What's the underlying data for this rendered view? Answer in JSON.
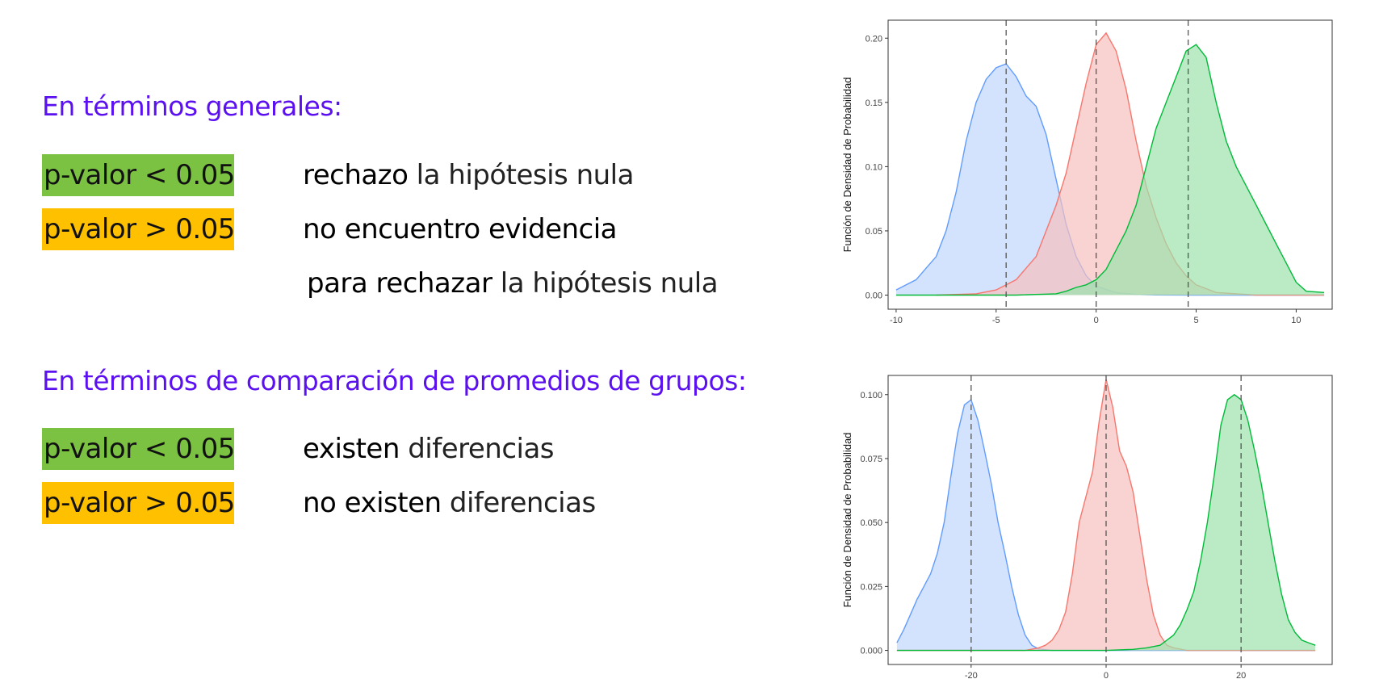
{
  "section_general": {
    "heading": "En términos generales:",
    "rows": [
      {
        "badge": "p-valor < 0.05",
        "badge_color": "#7bc142",
        "strong": "rechazo",
        "rest": " la hipótesis nula"
      },
      {
        "badge": "p-valor > 0.05",
        "badge_color": "#ffc000",
        "strong": "no encuentro evidencia",
        "rest": ""
      },
      {
        "strong": "para rechazar",
        "rest": " la hipótesis nula"
      }
    ]
  },
  "section_groups": {
    "heading": "En términos de comparación de promedios de grupos:",
    "rows": [
      {
        "badge": "p-valor < 0.05",
        "badge_color": "#7bc142",
        "strong": "existen",
        "rest": " diferencias"
      },
      {
        "badge": "p-valor > 0.05",
        "badge_color": "#ffc000",
        "strong": "no existen",
        "rest": " diferencias"
      }
    ]
  },
  "heading_color": "#5b10f0",
  "chart_data": [
    {
      "type": "area",
      "title": "",
      "xlabel": "",
      "ylabel": "Función de Densidad de Probabilidad",
      "xlim": [
        -10.4,
        11.8
      ],
      "ylim": [
        -0.011,
        0.214
      ],
      "xticks": [
        -10,
        -5,
        0,
        5,
        10
      ],
      "xtick_labels": [
        "-10",
        "-5",
        "0",
        "5",
        "10"
      ],
      "yticks": [
        0,
        0.05,
        0.1,
        0.15,
        0.2
      ],
      "ytick_labels": [
        "0.00",
        "0.05",
        "0.10",
        "0.15",
        "0.20"
      ],
      "grid": false,
      "legend": "none",
      "vlines": [
        -4.5,
        0,
        4.6
      ],
      "series": [
        {
          "color": "#619cff",
          "fill": "#c1d6fc",
          "x": [
            -10,
            -9,
            -8,
            -7.5,
            -7,
            -6.5,
            -6,
            -5.5,
            -5,
            -4.5,
            -4,
            -3.5,
            -3,
            -2.5,
            -2,
            -1.5,
            -1,
            -0.5,
            0,
            1,
            2,
            3,
            5,
            11.4
          ],
          "y": [
            0.004,
            0.012,
            0.03,
            0.05,
            0.08,
            0.12,
            0.15,
            0.168,
            0.177,
            0.18,
            0.17,
            0.155,
            0.147,
            0.125,
            0.09,
            0.055,
            0.03,
            0.015,
            0.007,
            0.002,
            0.0005,
            0.0001,
            0,
            0
          ]
        },
        {
          "color": "#f8766d",
          "fill": "#f6c1bd",
          "x": [
            -8,
            -6,
            -5,
            -4,
            -3,
            -2.5,
            -2,
            -1.5,
            -1,
            -0.5,
            0,
            0.5,
            1,
            1.5,
            2,
            2.5,
            3,
            3.5,
            4,
            4.5,
            5,
            6,
            8,
            11.4
          ],
          "y": [
            0,
            0.001,
            0.004,
            0.012,
            0.03,
            0.05,
            0.07,
            0.095,
            0.13,
            0.165,
            0.195,
            0.204,
            0.19,
            0.16,
            0.12,
            0.085,
            0.06,
            0.04,
            0.025,
            0.015,
            0.008,
            0.002,
            0,
            0
          ]
        },
        {
          "color": "#00ba38",
          "fill": "#9de3ac",
          "x": [
            -10,
            -4,
            -2,
            -1.5,
            -1,
            -0.5,
            0,
            0.5,
            1,
            1.5,
            2,
            2.5,
            3,
            3.5,
            4,
            4.5,
            5,
            5.5,
            6,
            6.5,
            7,
            7.5,
            8,
            8.5,
            9,
            9.5,
            10,
            10.5,
            11.4
          ],
          "y": [
            0,
            0,
            0.001,
            0.003,
            0.006,
            0.008,
            0.012,
            0.02,
            0.035,
            0.05,
            0.07,
            0.1,
            0.13,
            0.15,
            0.17,
            0.19,
            0.195,
            0.185,
            0.15,
            0.12,
            0.1,
            0.085,
            0.07,
            0.055,
            0.04,
            0.025,
            0.01,
            0.003,
            0.002
          ]
        }
      ]
    },
    {
      "type": "area",
      "title": "",
      "xlabel": "",
      "ylabel": "Función de Densidad de Probabilidad",
      "xlim": [
        -32.3,
        33.5
      ],
      "ylim": [
        -0.0055,
        0.1075
      ],
      "xticks": [
        -20,
        0,
        20
      ],
      "xtick_labels": [
        "-20",
        "0",
        "20"
      ],
      "yticks": [
        0,
        0.025,
        0.05,
        0.075,
        0.1
      ],
      "ytick_labels": [
        "0.000",
        "0.025",
        "0.050",
        "0.075",
        "0.100"
      ],
      "grid": false,
      "legend": "none",
      "vlines": [
        -20,
        0,
        20
      ],
      "series": [
        {
          "color": "#619cff",
          "fill": "#c1d6fc",
          "x": [
            -31,
            -30,
            -29,
            -28,
            -27,
            -26,
            -25,
            -24,
            -23,
            -22,
            -21,
            -20,
            -19,
            -18,
            -17,
            -16,
            -15,
            -14,
            -13,
            -12,
            -11,
            -10,
            -8,
            31
          ],
          "y": [
            0.003,
            0.008,
            0.014,
            0.02,
            0.025,
            0.03,
            0.038,
            0.05,
            0.068,
            0.085,
            0.096,
            0.098,
            0.09,
            0.078,
            0.065,
            0.05,
            0.038,
            0.025,
            0.014,
            0.006,
            0.002,
            0.0006,
            0,
            0
          ]
        },
        {
          "color": "#f8766d",
          "fill": "#f6c1bd",
          "x": [
            -31,
            -12,
            -10,
            -9,
            -8,
            -7,
            -6,
            -5,
            -4,
            -3,
            -2,
            -1,
            0,
            1,
            2,
            3,
            4,
            5,
            6,
            7,
            8,
            9,
            10,
            12,
            31
          ],
          "y": [
            0,
            0,
            0.001,
            0.002,
            0.004,
            0.008,
            0.015,
            0.03,
            0.05,
            0.06,
            0.07,
            0.09,
            0.106,
            0.095,
            0.078,
            0.072,
            0.062,
            0.045,
            0.028,
            0.014,
            0.006,
            0.002,
            0.001,
            0,
            0
          ]
        },
        {
          "color": "#00ba38",
          "fill": "#9de3ac",
          "x": [
            -31,
            0,
            4,
            6,
            8,
            9,
            10,
            11,
            12,
            13,
            14,
            15,
            16,
            17,
            18,
            19,
            20,
            21,
            22,
            23,
            24,
            25,
            26,
            27,
            28,
            29,
            30,
            31
          ],
          "y": [
            0,
            0,
            0.0004,
            0.001,
            0.002,
            0.004,
            0.006,
            0.01,
            0.016,
            0.023,
            0.035,
            0.05,
            0.068,
            0.088,
            0.098,
            0.1,
            0.098,
            0.09,
            0.078,
            0.065,
            0.05,
            0.035,
            0.022,
            0.012,
            0.007,
            0.004,
            0.003,
            0.002
          ]
        }
      ]
    }
  ]
}
